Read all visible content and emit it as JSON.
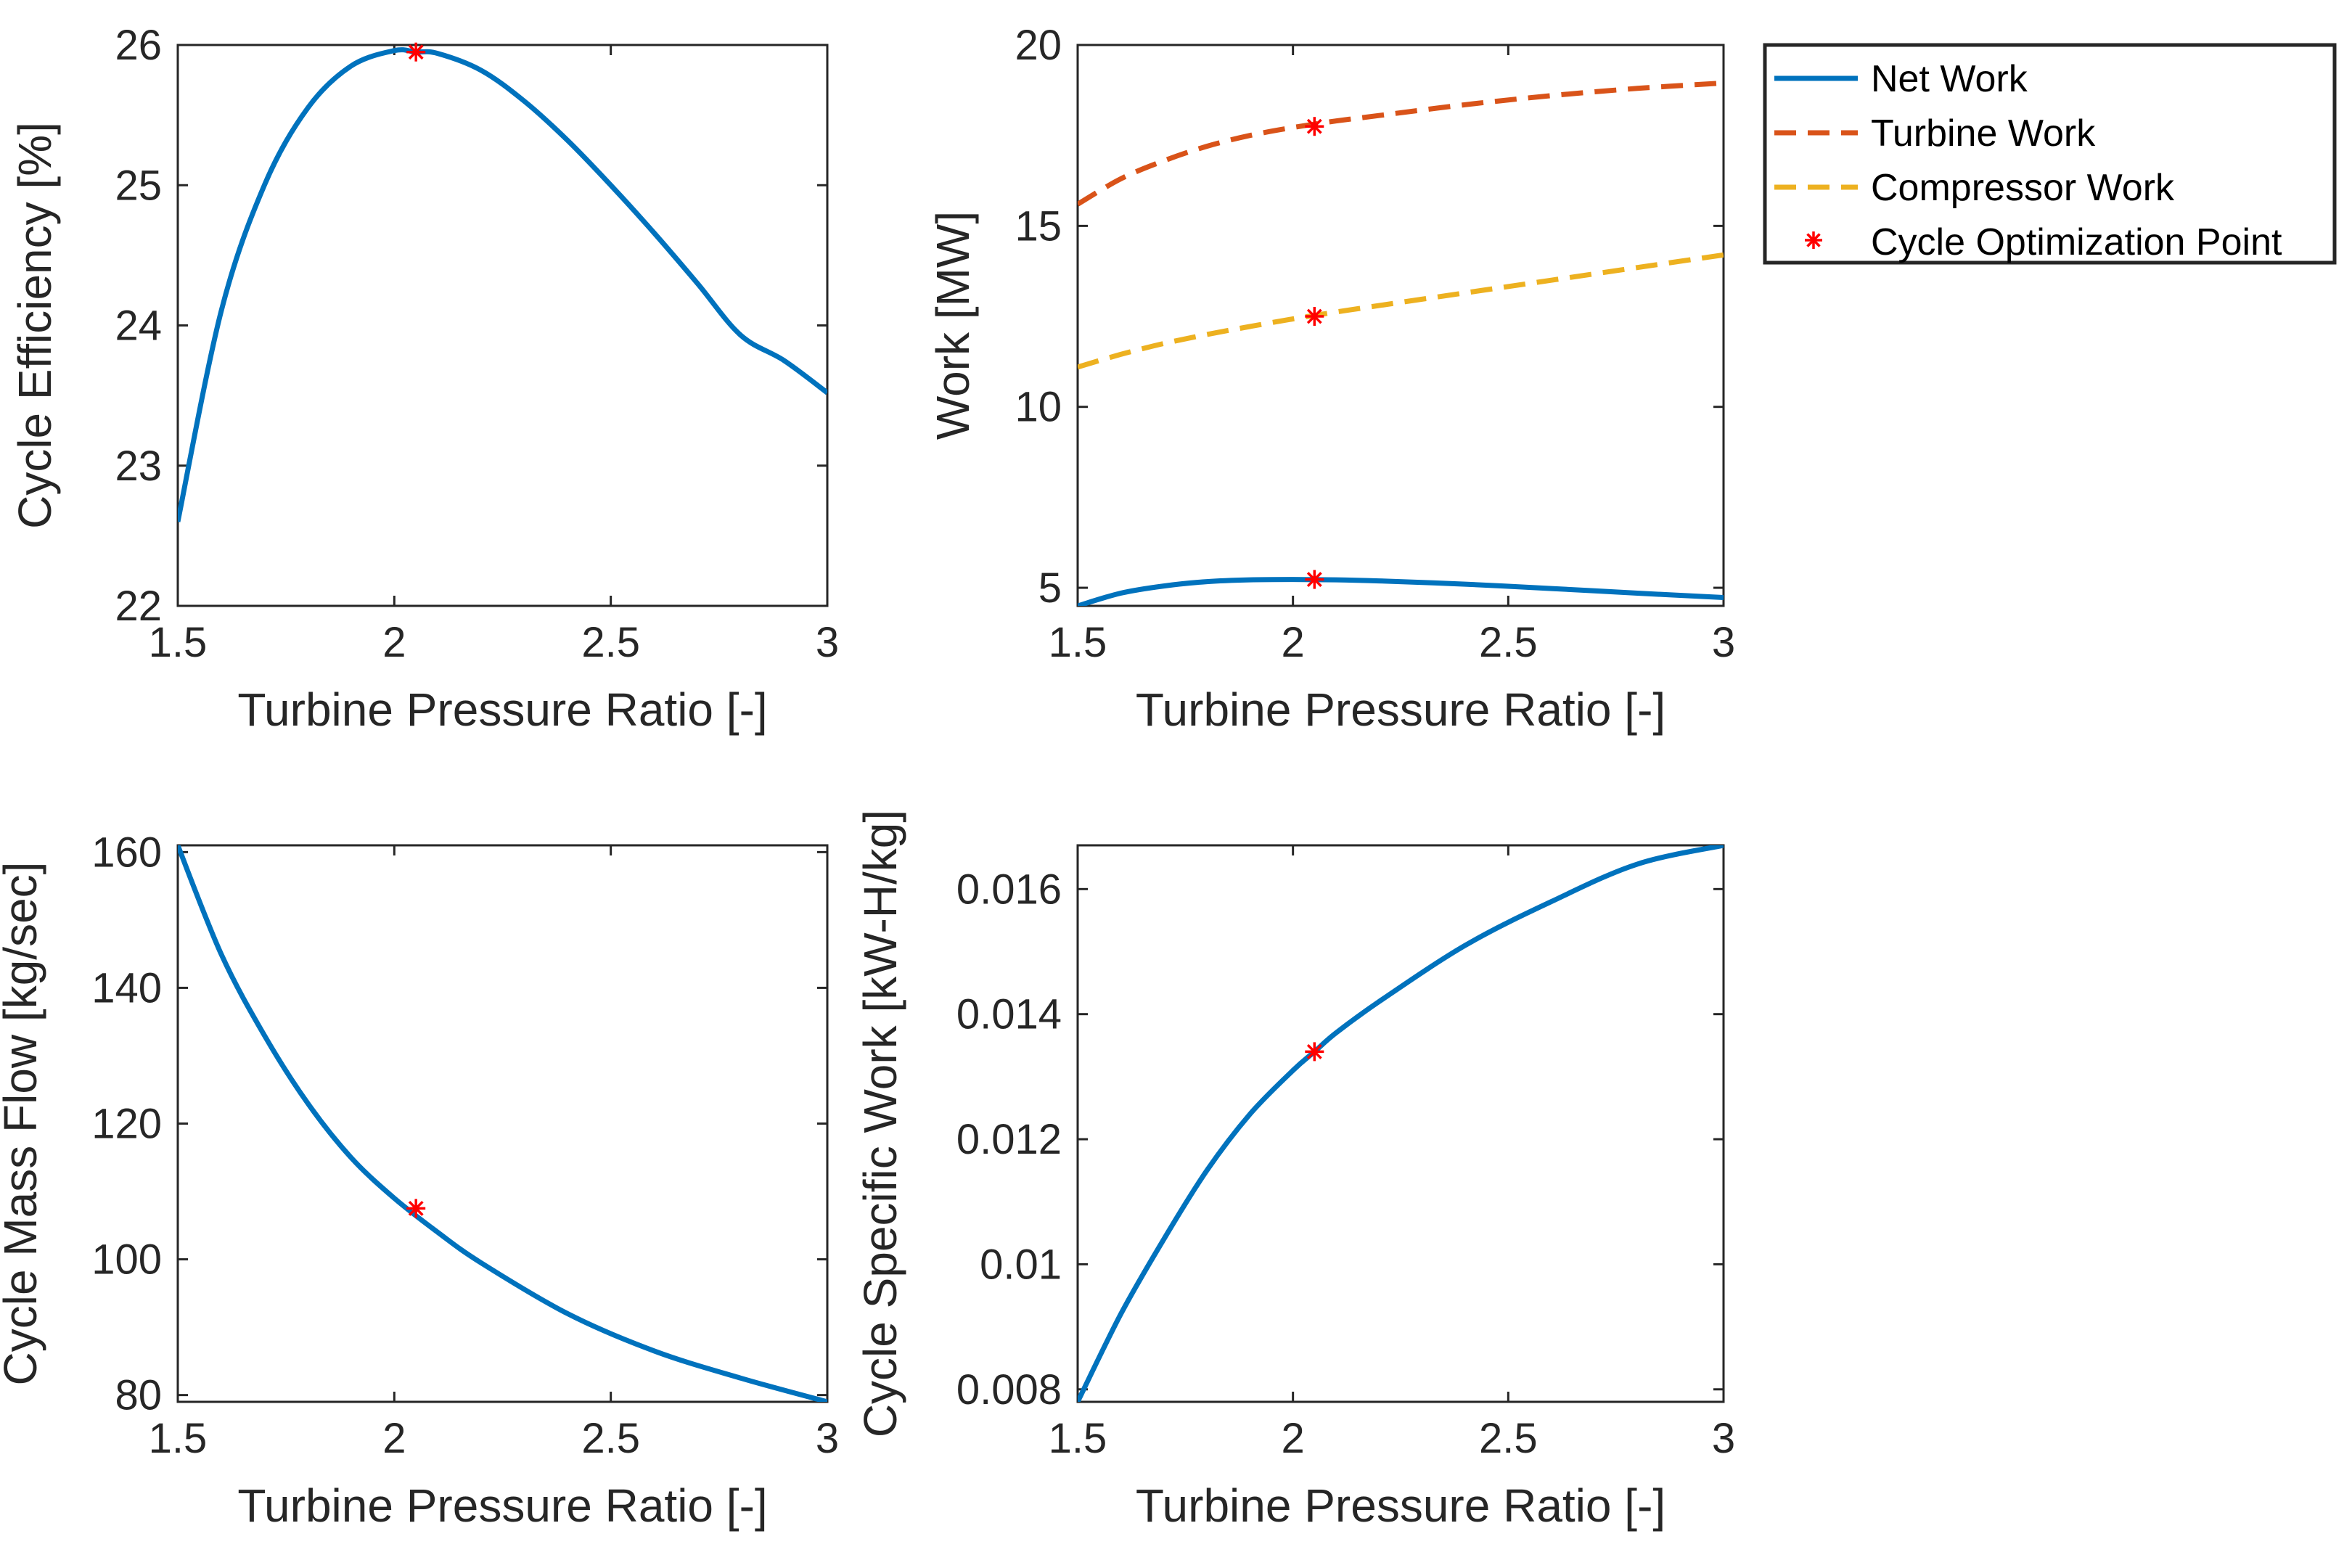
{
  "chart_data": [
    {
      "id": "efficiency",
      "type": "line",
      "title": "",
      "xlabel": "Turbine Pressure Ratio [-]",
      "ylabel": "Cycle Efficiency [%]",
      "xlim": [
        1.5,
        3
      ],
      "ylim": [
        22,
        26
      ],
      "xticks": [
        1.5,
        2,
        2.5,
        3
      ],
      "xtick_labels": [
        "1.5",
        "2",
        "2.5",
        "3"
      ],
      "yticks": [
        22,
        23,
        24,
        25,
        26
      ],
      "ytick_labels": [
        "22",
        "23",
        "24",
        "25",
        "26"
      ],
      "grid": false,
      "series": [
        {
          "name": "Cycle Efficiency",
          "color": "#0072BD",
          "style": "solid",
          "x": [
            1.5,
            1.6,
            1.7,
            1.8,
            1.9,
            2.0,
            2.05,
            2.1,
            2.2,
            2.3,
            2.4,
            2.5,
            2.6,
            2.7,
            2.8,
            2.9,
            3.0
          ],
          "y": [
            22.6,
            24.1,
            25.0,
            25.55,
            25.85,
            25.96,
            25.95,
            25.94,
            25.82,
            25.6,
            25.32,
            25.0,
            24.66,
            24.3,
            23.93,
            23.75,
            23.52
          ]
        }
      ],
      "markers": [
        {
          "name": "Cycle Optimization Point",
          "x": 2.05,
          "y": 25.95
        }
      ]
    },
    {
      "id": "work",
      "type": "line",
      "title": "",
      "xlabel": "Turbine Pressure Ratio [-]",
      "ylabel": "Work [MW]",
      "xlim": [
        1.5,
        3
      ],
      "ylim": [
        4.5,
        20
      ],
      "xticks": [
        1.5,
        2,
        2.5,
        3
      ],
      "xtick_labels": [
        "1.5",
        "2",
        "2.5",
        "3"
      ],
      "yticks": [
        5,
        10,
        15,
        20
      ],
      "ytick_labels": [
        "5",
        "10",
        "15",
        "20"
      ],
      "grid": false,
      "series": [
        {
          "name": "Net Work",
          "color": "#0072BD",
          "style": "solid",
          "x": [
            1.5,
            1.6,
            1.7,
            1.8,
            1.9,
            2.0,
            2.1,
            2.2,
            2.4,
            2.6,
            2.8,
            3.0
          ],
          "y": [
            4.5,
            4.85,
            5.05,
            5.17,
            5.22,
            5.23,
            5.22,
            5.19,
            5.1,
            4.98,
            4.85,
            4.73
          ]
        },
        {
          "name": "Turbine Work",
          "color": "#D95319",
          "style": "dashed",
          "x": [
            1.5,
            1.6,
            1.7,
            1.8,
            1.9,
            2.0,
            2.1,
            2.2,
            2.4,
            2.6,
            2.8,
            3.0
          ],
          "y": [
            15.6,
            16.3,
            16.8,
            17.2,
            17.5,
            17.72,
            17.9,
            18.05,
            18.35,
            18.6,
            18.8,
            18.95
          ]
        },
        {
          "name": "Compressor Work",
          "color": "#EDB120",
          "style": "dashed",
          "x": [
            1.5,
            1.6,
            1.7,
            1.8,
            1.9,
            2.0,
            2.1,
            2.2,
            2.4,
            2.6,
            2.8,
            3.0
          ],
          "y": [
            11.1,
            11.45,
            11.75,
            12.0,
            12.22,
            12.43,
            12.62,
            12.8,
            13.15,
            13.5,
            13.85,
            14.2
          ]
        }
      ],
      "markers": [
        {
          "name": "Cycle Optimization Point",
          "x": 2.05,
          "y": 17.75
        },
        {
          "name": "Cycle Optimization Point",
          "x": 2.05,
          "y": 12.5
        },
        {
          "name": "Cycle Optimization Point",
          "x": 2.05,
          "y": 5.23
        }
      ]
    },
    {
      "id": "massflow",
      "type": "line",
      "title": "",
      "xlabel": "Turbine Pressure Ratio [-]",
      "ylabel": "Cycle Mass Flow [kg/sec]",
      "xlim": [
        1.5,
        3
      ],
      "ylim": [
        79,
        161
      ],
      "xticks": [
        1.5,
        2,
        2.5,
        3
      ],
      "xtick_labels": [
        "1.5",
        "2",
        "2.5",
        "3"
      ],
      "yticks": [
        80,
        100,
        120,
        140,
        160
      ],
      "ytick_labels": [
        "80",
        "100",
        "120",
        "140",
        "160"
      ],
      "grid": false,
      "series": [
        {
          "name": "Cycle Mass Flow",
          "color": "#0072BD",
          "style": "solid",
          "x": [
            1.5,
            1.6,
            1.7,
            1.8,
            1.9,
            2.0,
            2.1,
            2.2,
            2.4,
            2.6,
            2.8,
            3.0
          ],
          "y": [
            161,
            145,
            133,
            123,
            115,
            109,
            104,
            99.5,
            92,
            86.5,
            82.5,
            79
          ]
        }
      ],
      "markers": [
        {
          "name": "Cycle Optimization Point",
          "x": 2.05,
          "y": 107.5
        }
      ]
    },
    {
      "id": "specificwork",
      "type": "line",
      "title": "",
      "xlabel": "Turbine Pressure Ratio [-]",
      "ylabel": "Cycle Specific Work [kW-H/kg]",
      "xlim": [
        1.5,
        3
      ],
      "ylim": [
        0.0078,
        0.0167
      ],
      "xticks": [
        1.5,
        2,
        2.5,
        3
      ],
      "xtick_labels": [
        "1.5",
        "2",
        "2.5",
        "3"
      ],
      "yticks": [
        0.008,
        0.01,
        0.012,
        0.014,
        0.016
      ],
      "ytick_labels": [
        "0.008",
        "0.01",
        "0.012",
        "0.014",
        "0.016"
      ],
      "grid": false,
      "series": [
        {
          "name": "Cycle Specific Work",
          "color": "#0072BD",
          "style": "solid",
          "x": [
            1.5,
            1.6,
            1.7,
            1.8,
            1.9,
            2.0,
            2.05,
            2.1,
            2.2,
            2.4,
            2.6,
            2.8,
            3.0
          ],
          "y": [
            0.0078,
            0.0092,
            0.0104,
            0.0115,
            0.0124,
            0.0131,
            0.0134,
            0.0137,
            0.0142,
            0.0151,
            0.0158,
            0.0164,
            0.0167
          ]
        }
      ],
      "markers": [
        {
          "name": "Cycle Optimization Point",
          "x": 2.05,
          "y": 0.0134
        }
      ]
    }
  ],
  "legend": {
    "position": "right of top-right panel",
    "entries": [
      {
        "label": "Net Work",
        "color": "#0072BD",
        "style": "solid"
      },
      {
        "label": "Turbine Work",
        "color": "#D95319",
        "style": "dashed"
      },
      {
        "label": "Compressor Work",
        "color": "#EDB120",
        "style": "dashed"
      },
      {
        "label": "Cycle Optimization Point",
        "color": "#FF0000",
        "style": "marker-asterisk"
      }
    ]
  }
}
